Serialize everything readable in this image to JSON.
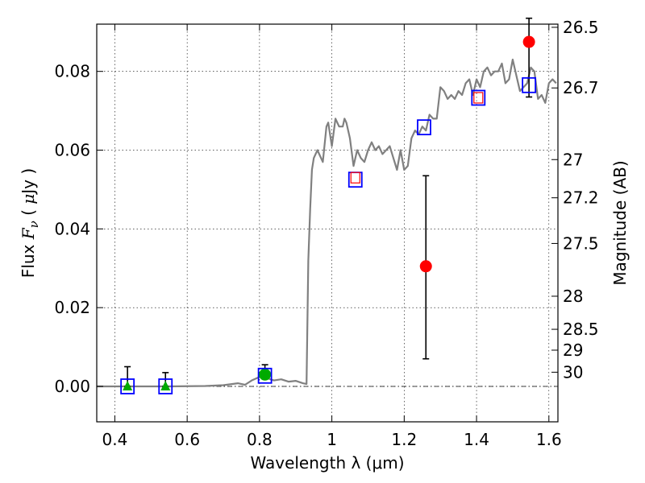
{
  "chart_data": {
    "type": "scatter",
    "xlabel": "Wavelength  λ (μm)",
    "ylabel": "Flux  Fν  ( μJy )",
    "ylabel_right": "Magnitude (AB)",
    "xlim": [
      0.35,
      1.625
    ],
    "ylim": [
      -0.009,
      0.092
    ],
    "xticks": [
      0.4,
      0.6,
      0.8,
      1.0,
      1.2,
      1.4,
      1.6
    ],
    "xtick_labels": [
      "0.4",
      "0.6",
      "0.8",
      "1",
      "1.2",
      "1.4",
      "1.6"
    ],
    "yticks": [
      0.0,
      0.02,
      0.04,
      0.06,
      0.08
    ],
    "ytick_labels": [
      "0.00",
      "0.02",
      "0.04",
      "0.06",
      "0.08"
    ],
    "right_ticks": [
      {
        "label": "26.5",
        "flux": 0.0912
      },
      {
        "label": "26.7",
        "flux": 0.0758
      },
      {
        "label": "27",
        "flux": 0.0576
      },
      {
        "label": "27.2",
        "flux": 0.0479
      },
      {
        "label": "27.5",
        "flux": 0.0363
      },
      {
        "label": "28",
        "flux": 0.0229
      },
      {
        "label": "28.5",
        "flux": 0.0145
      },
      {
        "label": "29",
        "flux": 0.0092
      },
      {
        "label": "30",
        "flux": 0.0036
      }
    ],
    "grid": true,
    "zero_line": true,
    "model_spectrum": {
      "color": "#808080",
      "x": [
        0.35,
        0.45,
        0.55,
        0.65,
        0.7,
        0.74,
        0.76,
        0.78,
        0.8,
        0.82,
        0.84,
        0.86,
        0.88,
        0.9,
        0.92,
        0.93,
        0.935,
        0.94,
        0.945,
        0.95,
        0.96,
        0.975,
        0.985,
        0.99,
        1.0,
        1.01,
        1.02,
        1.03,
        1.035,
        1.04,
        1.05,
        1.06,
        1.07,
        1.08,
        1.09,
        1.1,
        1.11,
        1.12,
        1.13,
        1.14,
        1.15,
        1.16,
        1.17,
        1.18,
        1.19,
        1.2,
        1.21,
        1.22,
        1.23,
        1.24,
        1.25,
        1.26,
        1.27,
        1.28,
        1.29,
        1.3,
        1.31,
        1.32,
        1.33,
        1.34,
        1.35,
        1.36,
        1.37,
        1.38,
        1.39,
        1.4,
        1.41,
        1.42,
        1.43,
        1.44,
        1.45,
        1.46,
        1.47,
        1.48,
        1.49,
        1.5,
        1.51,
        1.52,
        1.53,
        1.54,
        1.55,
        1.56,
        1.57,
        1.58,
        1.59,
        1.6,
        1.61,
        1.62
      ],
      "y": [
        0.0,
        0.0,
        0.0,
        0.0001,
        0.0003,
        0.0008,
        0.0004,
        0.0016,
        0.0024,
        0.0021,
        0.0015,
        0.0018,
        0.0012,
        0.0014,
        0.0008,
        0.0006,
        0.032,
        0.045,
        0.055,
        0.058,
        0.06,
        0.057,
        0.066,
        0.067,
        0.061,
        0.068,
        0.066,
        0.066,
        0.068,
        0.067,
        0.063,
        0.056,
        0.06,
        0.058,
        0.057,
        0.06,
        0.062,
        0.06,
        0.061,
        0.059,
        0.06,
        0.061,
        0.058,
        0.055,
        0.06,
        0.055,
        0.056,
        0.063,
        0.065,
        0.064,
        0.066,
        0.065,
        0.069,
        0.068,
        0.068,
        0.076,
        0.075,
        0.073,
        0.074,
        0.073,
        0.075,
        0.074,
        0.077,
        0.078,
        0.074,
        0.078,
        0.076,
        0.08,
        0.081,
        0.079,
        0.08,
        0.08,
        0.082,
        0.077,
        0.078,
        0.083,
        0.079,
        0.075,
        0.076,
        0.077,
        0.081,
        0.08,
        0.073,
        0.074,
        0.072,
        0.077,
        0.078,
        0.077
      ]
    },
    "model_photometry": {
      "marker": "open-square",
      "color": "#0000ff",
      "x": [
        0.435,
        0.54,
        0.815,
        1.065,
        1.255,
        1.405,
        1.545
      ],
      "y": [
        0.0,
        0.0,
        0.0027,
        0.0525,
        0.0658,
        0.0733,
        0.0765
      ]
    },
    "detections": {
      "marker": "circle",
      "color": "#ff0000",
      "x": [
        1.26,
        1.545
      ],
      "y": [
        0.0305,
        0.0875
      ],
      "yerr_low": [
        0.0235,
        0.014
      ],
      "yerr_high": [
        0.023,
        0.006
      ]
    },
    "photometry_squares": {
      "marker": "open-square",
      "color": "#ff0000",
      "x": [
        1.065,
        1.405
      ],
      "y": [
        0.053,
        0.0733
      ]
    },
    "upper_limits": {
      "marker": "triangle",
      "color": "#00aa00",
      "x": [
        0.435,
        0.54
      ],
      "y": [
        0.0,
        0.0
      ],
      "yerr_low": [
        0.0,
        0.0
      ],
      "yerr_high": [
        0.005,
        0.0035
      ]
    },
    "low_sn_points": {
      "marker": "circle",
      "color": "#00aa00",
      "x": [
        0.815
      ],
      "y": [
        0.003
      ],
      "yerr_low": [
        0.0008
      ],
      "yerr_high": [
        0.0025
      ]
    }
  }
}
